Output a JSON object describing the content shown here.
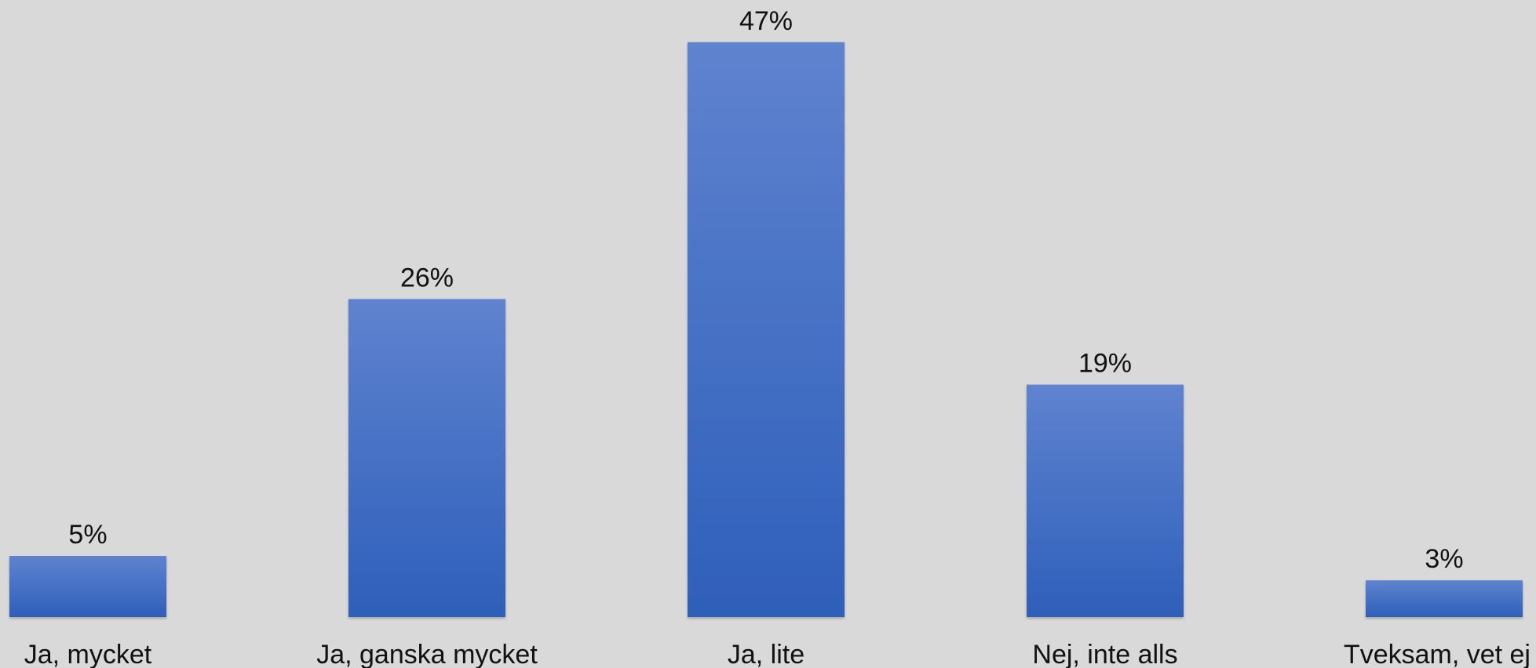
{
  "chart_data": {
    "type": "bar",
    "categories": [
      "Ja, mycket",
      "Ja, ganska mycket",
      "Ja, lite",
      "Nej, inte alls",
      "Tveksam, vet ej"
    ],
    "values": [
      5,
      26,
      47,
      19,
      3
    ],
    "value_labels": [
      "5%",
      "26%",
      "47%",
      "19%",
      "3%"
    ],
    "unit": "%",
    "grid": false,
    "legend": "none",
    "colors": {
      "background": "#d9d9d9",
      "bar_top": "#5f83cf",
      "bar_bottom": "#2e5fba",
      "text": "#111111"
    }
  }
}
